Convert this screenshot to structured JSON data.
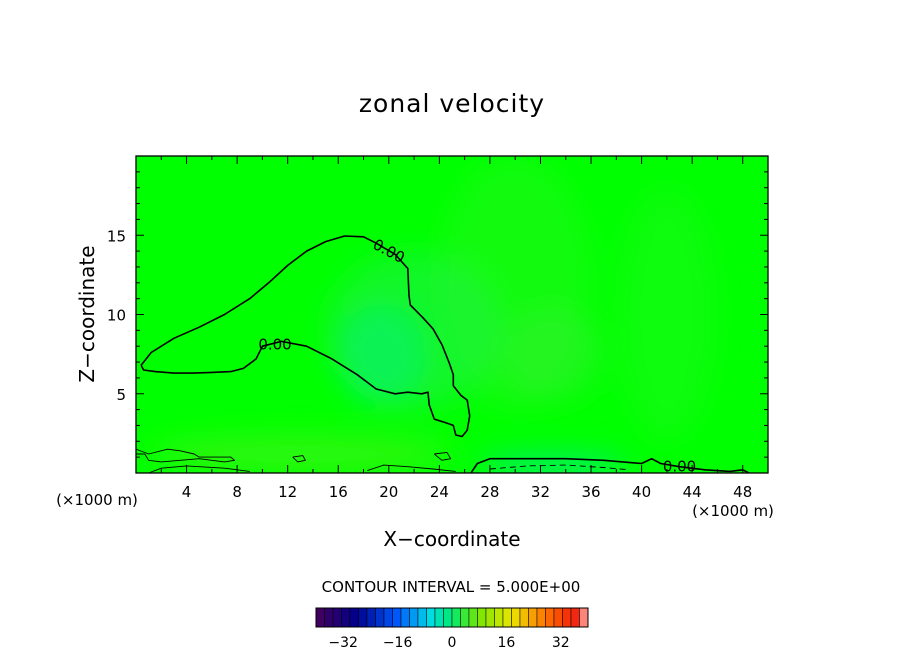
{
  "chart_data": {
    "type": "heatmap",
    "title": "zonal velocity",
    "xlabel": "X−coordinate",
    "ylabel": "Z−coordinate",
    "x_unit_label": "(×1000 m)",
    "y_unit_label": "(×1000 m)",
    "xlim": [
      0,
      50
    ],
    "ylim": [
      0,
      20
    ],
    "x_ticks": [
      4,
      8,
      12,
      16,
      20,
      24,
      28,
      32,
      36,
      40,
      44,
      48
    ],
    "x_tick_labels": [
      "4",
      "8",
      "12",
      "16",
      "20",
      "24",
      "28",
      "32",
      "36",
      "40",
      "44",
      "48"
    ],
    "y_ticks": [
      5,
      10,
      15
    ],
    "y_tick_labels": [
      "5",
      "10",
      "15"
    ],
    "contour_labels": [
      {
        "text": "0.00",
        "x": 20,
        "y": 14.0
      },
      {
        "text": "0.00",
        "x": 11,
        "y": 8.1
      },
      {
        "text": "0.00",
        "x": 43,
        "y": 0.4
      }
    ],
    "zero_contours": [
      [
        [
          0.4,
          6.8
        ],
        [
          1.2,
          7.6
        ],
        [
          3,
          8.5
        ],
        [
          5,
          9.2
        ],
        [
          7,
          10
        ],
        [
          9,
          11
        ],
        [
          10.5,
          12
        ],
        [
          12,
          13.1
        ],
        [
          13.5,
          14
        ],
        [
          15,
          14.6
        ],
        [
          16.5,
          14.95
        ],
        [
          18,
          14.9
        ],
        [
          19,
          14.5
        ],
        [
          20.5,
          13.8
        ],
        [
          21.5,
          12.9
        ],
        [
          21.6,
          11.2
        ],
        [
          21.7,
          10.6
        ],
        [
          22.7,
          9.8
        ],
        [
          23.5,
          9.1
        ],
        [
          24.2,
          8.1
        ],
        [
          24.8,
          6.9
        ],
        [
          25.1,
          6.2
        ],
        [
          25.1,
          5.5
        ],
        [
          25.7,
          4.9
        ],
        [
          26.2,
          4.6
        ],
        [
          26.4,
          3.6
        ],
        [
          26.2,
          2.7
        ],
        [
          25.8,
          2.3
        ],
        [
          25.3,
          2.4
        ],
        [
          25.1,
          3.0
        ],
        [
          24.4,
          3.2
        ],
        [
          23.6,
          3.4
        ],
        [
          23.2,
          4.3
        ],
        [
          23.1,
          5.1
        ],
        [
          22.6,
          5.0
        ],
        [
          21.5,
          5.1
        ],
        [
          20.5,
          5.0
        ],
        [
          19,
          5.3
        ],
        [
          17.5,
          6.2
        ],
        [
          15.5,
          7.2
        ],
        [
          13.5,
          8.0
        ],
        [
          11.5,
          8.3
        ],
        [
          10,
          8.0
        ],
        [
          9.5,
          7.2
        ],
        [
          8.5,
          6.6
        ],
        [
          7.5,
          6.4
        ],
        [
          6,
          6.35
        ],
        [
          4.5,
          6.3
        ],
        [
          3,
          6.3
        ],
        [
          1.5,
          6.4
        ],
        [
          0.6,
          6.5
        ],
        [
          0.4,
          6.8
        ]
      ],
      [
        [
          26.5,
          0
        ],
        [
          27,
          0.6
        ],
        [
          28,
          0.9
        ],
        [
          31,
          0.9
        ],
        [
          34,
          0.9
        ],
        [
          37,
          0.8
        ],
        [
          40,
          0.6
        ],
        [
          40.8,
          0.9
        ],
        [
          41.5,
          0.6
        ],
        [
          43,
          0.4
        ],
        [
          45,
          0.2
        ],
        [
          47,
          0.1
        ],
        [
          48,
          0.2
        ],
        [
          48.5,
          0
        ]
      ]
    ],
    "small_contours": [
      [
        [
          0,
          1.5
        ],
        [
          1,
          1.2
        ],
        [
          2.5,
          1.5
        ],
        [
          3.5,
          1.4
        ],
        [
          4.6,
          1.2
        ],
        [
          5,
          1.0
        ],
        [
          6,
          1.0
        ],
        [
          7.5,
          1.0
        ],
        [
          7.8,
          0.8
        ],
        [
          7,
          0.7
        ],
        [
          5,
          0.9
        ],
        [
          3.5,
          0.8
        ],
        [
          2,
          0.7
        ],
        [
          1,
          0.8
        ],
        [
          0.7,
          1.2
        ],
        [
          0,
          1.2
        ]
      ],
      [
        [
          12.4,
          1.0
        ],
        [
          12.8,
          0.7
        ],
        [
          13.4,
          0.8
        ],
        [
          13.2,
          1.1
        ],
        [
          12.4,
          1.0
        ]
      ],
      [
        [
          23.6,
          1.2
        ],
        [
          24.6,
          1.3
        ],
        [
          24.9,
          0.9
        ],
        [
          24.2,
          0.8
        ],
        [
          23.6,
          1.2
        ]
      ],
      [
        [
          18.3,
          0.15
        ],
        [
          19.6,
          0.5
        ],
        [
          21.5,
          0.4
        ],
        [
          23.5,
          0.25
        ],
        [
          25.3,
          0.1
        ]
      ],
      [
        [
          1,
          0
        ],
        [
          2,
          0.3
        ],
        [
          4,
          0.45
        ],
        [
          7,
          0.3
        ],
        [
          9,
          0.1
        ]
      ]
    ],
    "dashed_contour": [
      [
        28,
        0.25
      ],
      [
        31,
        0.45
      ],
      [
        34,
        0.5
      ],
      [
        37,
        0.35
      ],
      [
        39,
        0.2
      ]
    ],
    "contour_interval_label": "CONTOUR INTERVAL = 5.000E+00",
    "colorbar_ticks": [
      -32,
      -16,
      0,
      16,
      32
    ],
    "colorbar_tick_labels": [
      "−32",
      "−16",
      "0",
      "16",
      "32"
    ],
    "colorbar_range": [
      -40,
      40
    ],
    "colorbar_levels": 32,
    "field_color": "#00ff00",
    "anomalies": [
      {
        "x": 19.5,
        "y": 7.5,
        "rx": 3.5,
        "ry": 3.2,
        "color": "#00f07a",
        "opacity": 0.75
      },
      {
        "x": 22,
        "y": 9,
        "rx": 7,
        "ry": 5,
        "color": "#20f050",
        "opacity": 0.5
      },
      {
        "x": 33,
        "y": 7.5,
        "rx": 4,
        "ry": 3,
        "color": "#38ee34",
        "opacity": 0.45
      },
      {
        "x": 33,
        "y": 0.5,
        "rx": 6,
        "ry": 0.6,
        "color": "#00e890",
        "opacity": 0.85
      },
      {
        "x": 13,
        "y": 1.2,
        "rx": 12,
        "ry": 1.2,
        "color": "#66ee22",
        "opacity": 0.45
      },
      {
        "x": 30,
        "y": 12,
        "rx": 6,
        "ry": 8,
        "color": "#44f040",
        "opacity": 0.25
      },
      {
        "x": 42,
        "y": 10,
        "rx": 4,
        "ry": 8,
        "color": "#44f040",
        "opacity": 0.2
      }
    ]
  }
}
